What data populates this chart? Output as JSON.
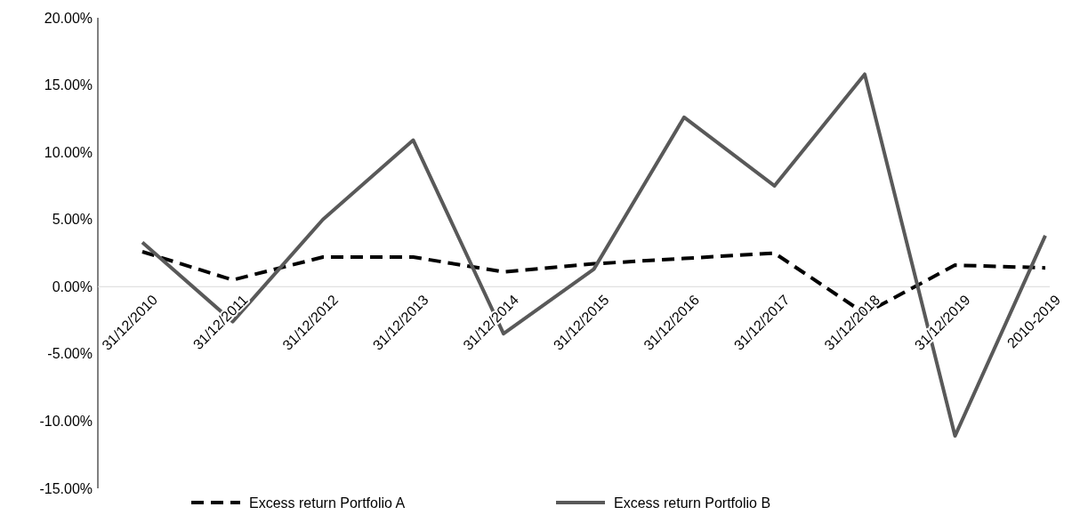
{
  "chart_data": {
    "type": "line",
    "categories": [
      "31/12/2010",
      "31/12/2011",
      "31/12/2012",
      "31/12/2013",
      "31/12/2014",
      "31/12/2015",
      "31/12/2016",
      "31/12/2017",
      "31/12/2018",
      "31/12/2019",
      "2010-2019"
    ],
    "series": [
      {
        "name": "Excess return Portfolio A",
        "color": "#000000",
        "line_style": "dashed",
        "values": [
          2.6,
          0.5,
          2.2,
          2.2,
          1.1,
          1.7,
          2.1,
          2.5,
          -2.0,
          1.6,
          1.4
        ]
      },
      {
        "name": "Excess return Portfolio B",
        "color": "#595959",
        "line_style": "solid",
        "values": [
          3.3,
          -2.6,
          5.0,
          10.9,
          -3.5,
          1.3,
          12.6,
          7.5,
          15.8,
          -11.1,
          3.8
        ]
      }
    ],
    "ylim": [
      -15,
      20
    ],
    "yticks": [
      {
        "value": -15,
        "label": "-15.00%"
      },
      {
        "value": -10,
        "label": "-10.00%"
      },
      {
        "value": -5,
        "label": "-5.00%"
      },
      {
        "value": 0,
        "label": "0.00%"
      },
      {
        "value": 5,
        "label": "5.00%"
      },
      {
        "value": 10,
        "label": "10.00%"
      },
      {
        "value": 15,
        "label": "15.00%"
      },
      {
        "value": 20,
        "label": "20.00%"
      }
    ],
    "legend": "bottom",
    "marker": "none"
  }
}
